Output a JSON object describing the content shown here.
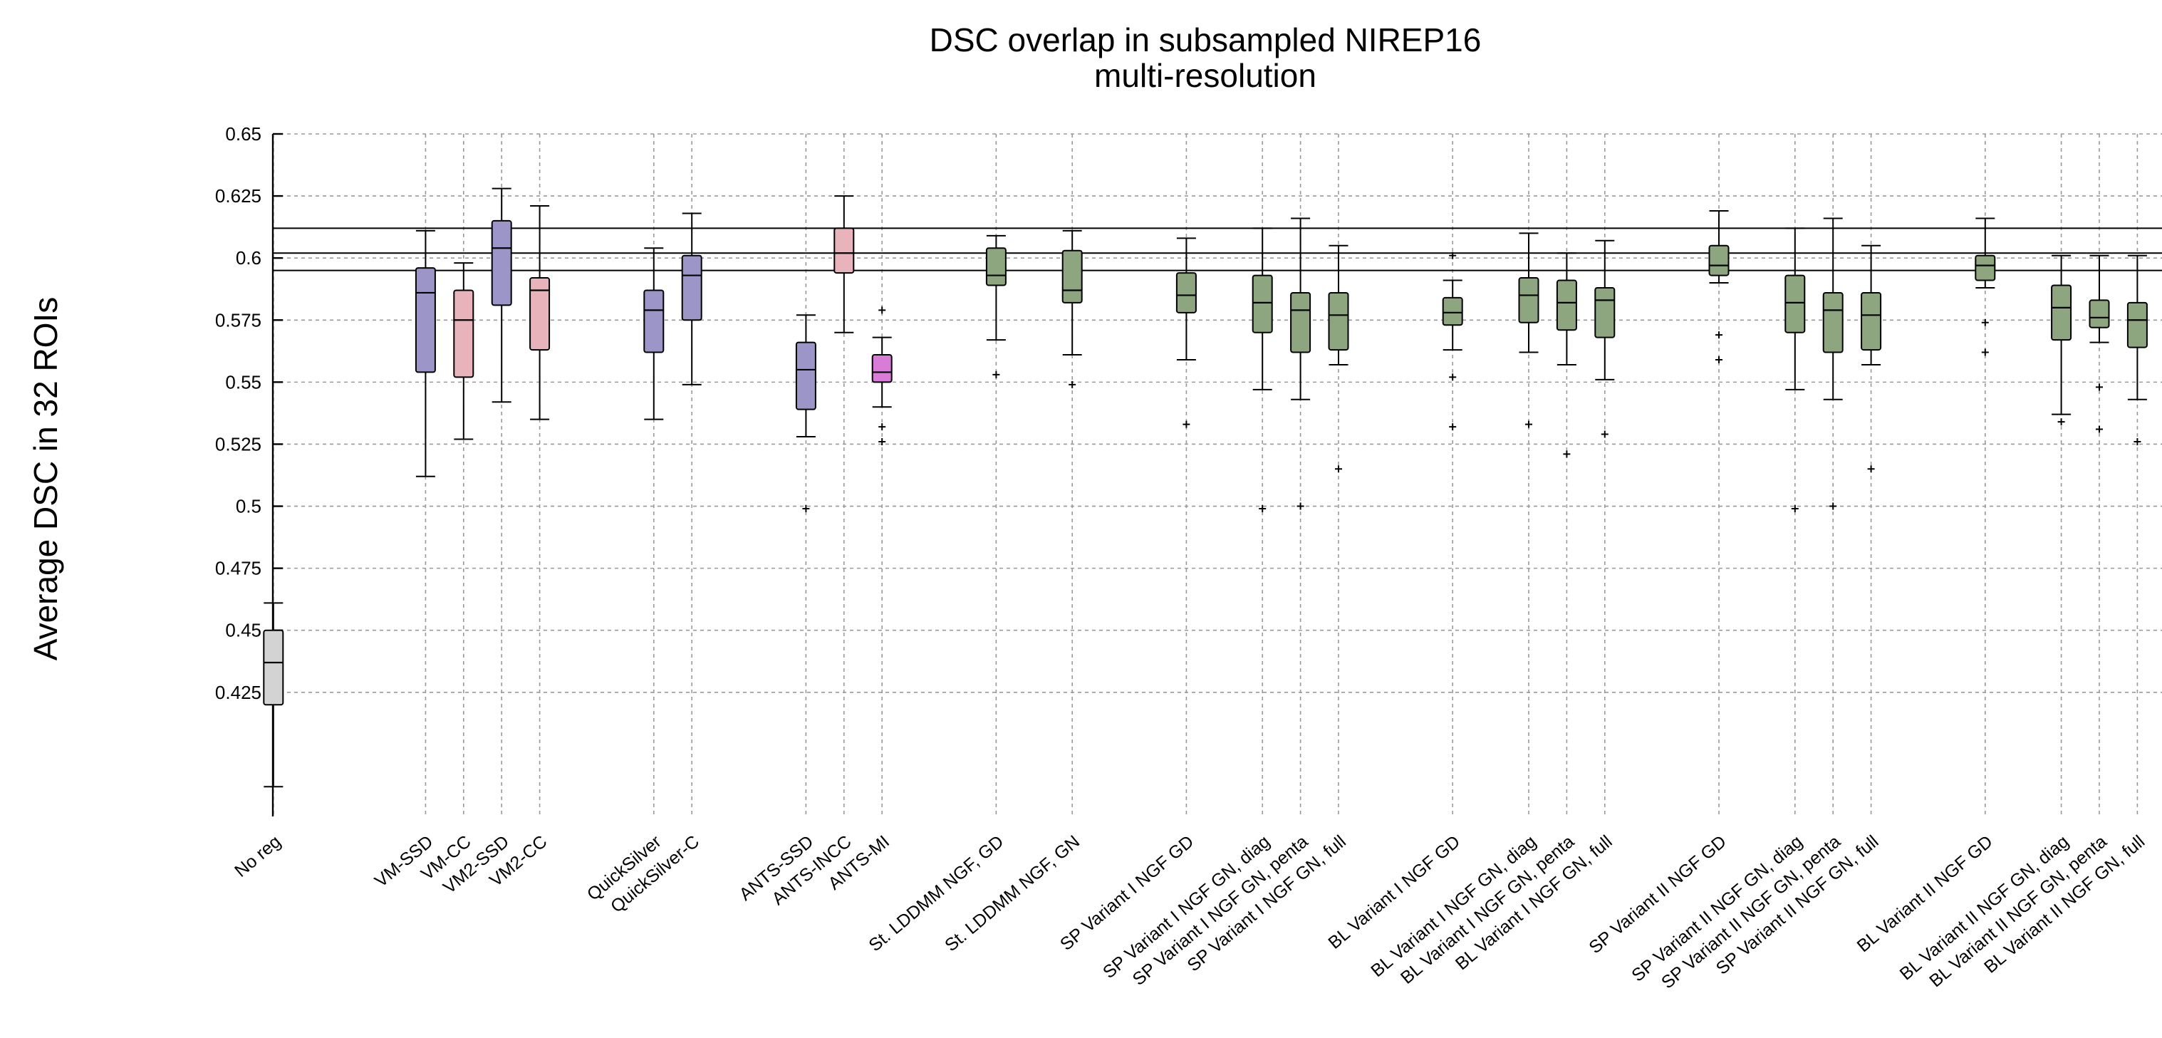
{
  "chart_data": {
    "type": "box",
    "title": "DSC overlap in subsampled NIREP16",
    "subtitle": "multi-resolution",
    "ylabel": "Average DSC in 32 ROIs",
    "xlabel": "",
    "ylim": [
      0.375,
      0.65
    ],
    "yticks": [
      0.425,
      0.45,
      0.475,
      0.5,
      0.525,
      0.55,
      0.575,
      0.6,
      0.625,
      0.65
    ],
    "ytick_labels": [
      "0.425",
      "0.45",
      "0.475",
      "0.5",
      "0.525",
      "0.55",
      "0.575",
      "0.6",
      "0.625",
      "0.65"
    ],
    "grid": true,
    "reference_lines": [
      0.612,
      0.602,
      0.595
    ],
    "colors": {
      "gray": "#d3d3d3",
      "purple": "#9c96c8",
      "pink": "#e8b3bb",
      "magenta": "#d87cd8",
      "green": "#8da67f"
    },
    "categories": [
      {
        "label": "No reg",
        "pos": 1,
        "color": "gray",
        "q1": 0.42,
        "median": 0.437,
        "q3": 0.45,
        "wlo": 0.387,
        "whi": 0.461,
        "outliers": []
      },
      {
        "label": "VM-SSD",
        "pos": 5,
        "color": "purple",
        "q1": 0.554,
        "median": 0.586,
        "q3": 0.596,
        "wlo": 0.512,
        "whi": 0.611,
        "outliers": []
      },
      {
        "label": "VM-CC",
        "pos": 6,
        "color": "pink",
        "q1": 0.552,
        "median": 0.575,
        "q3": 0.587,
        "wlo": 0.527,
        "whi": 0.598,
        "outliers": []
      },
      {
        "label": "VM2-SSD",
        "pos": 7,
        "color": "purple",
        "q1": 0.581,
        "median": 0.604,
        "q3": 0.615,
        "wlo": 0.542,
        "whi": 0.628,
        "outliers": []
      },
      {
        "label": "VM2-CC",
        "pos": 8,
        "color": "pink",
        "q1": 0.563,
        "median": 0.587,
        "q3": 0.592,
        "wlo": 0.535,
        "whi": 0.621,
        "outliers": []
      },
      {
        "label": "QuickSilver",
        "pos": 11,
        "color": "purple",
        "q1": 0.562,
        "median": 0.579,
        "q3": 0.587,
        "wlo": 0.535,
        "whi": 0.604,
        "outliers": []
      },
      {
        "label": "QuickSilver-C",
        "pos": 12,
        "color": "purple",
        "q1": 0.575,
        "median": 0.593,
        "q3": 0.601,
        "wlo": 0.549,
        "whi": 0.618,
        "outliers": []
      },
      {
        "label": "ANTS-SSD",
        "pos": 15,
        "color": "purple",
        "q1": 0.539,
        "median": 0.555,
        "q3": 0.566,
        "wlo": 0.528,
        "whi": 0.577,
        "outliers": [
          0.499
        ]
      },
      {
        "label": "ANTS-INCC",
        "pos": 16,
        "color": "pink",
        "q1": 0.594,
        "median": 0.602,
        "q3": 0.612,
        "wlo": 0.57,
        "whi": 0.625,
        "outliers": []
      },
      {
        "label": "ANTS-MI",
        "pos": 17,
        "color": "magenta",
        "q1": 0.55,
        "median": 0.554,
        "q3": 0.561,
        "wlo": 0.54,
        "whi": 0.568,
        "outliers": [
          0.579,
          0.532,
          0.526
        ]
      },
      {
        "label": "St. LDDMM NGF, GD",
        "pos": 20,
        "color": "green",
        "q1": 0.589,
        "median": 0.593,
        "q3": 0.604,
        "wlo": 0.567,
        "whi": 0.609,
        "outliers": [
          0.553
        ]
      },
      {
        "label": "St. LDDMM NGF, GN",
        "pos": 22,
        "color": "green",
        "q1": 0.582,
        "median": 0.587,
        "q3": 0.603,
        "wlo": 0.561,
        "whi": 0.611,
        "outliers": [
          0.549
        ]
      },
      {
        "label": "SP Variant I NGF GD",
        "pos": 25,
        "color": "green",
        "q1": 0.578,
        "median": 0.585,
        "q3": 0.594,
        "wlo": 0.559,
        "whi": 0.608,
        "outliers": [
          0.533
        ]
      },
      {
        "label": "SP Variant I NGF GN, diag",
        "pos": 27,
        "color": "green",
        "q1": 0.57,
        "median": 0.582,
        "q3": 0.593,
        "wlo": 0.547,
        "whi": 0.612,
        "outliers": [
          0.499
        ]
      },
      {
        "label": "SP Variant I NGF GN, penta",
        "pos": 28,
        "color": "green",
        "q1": 0.562,
        "median": 0.579,
        "q3": 0.586,
        "wlo": 0.543,
        "whi": 0.616,
        "outliers": [
          0.5
        ]
      },
      {
        "label": "SP Variant I NGF GN, full",
        "pos": 29,
        "color": "green",
        "q1": 0.563,
        "median": 0.577,
        "q3": 0.586,
        "wlo": 0.557,
        "whi": 0.605,
        "outliers": [
          0.515
        ]
      },
      {
        "label": "BL Variant I NGF GD",
        "pos": 32,
        "color": "green",
        "q1": 0.573,
        "median": 0.578,
        "q3": 0.584,
        "wlo": 0.563,
        "whi": 0.591,
        "outliers": [
          0.601,
          0.552,
          0.532
        ]
      },
      {
        "label": "BL Variant I NGF GN, diag",
        "pos": 34,
        "color": "green",
        "q1": 0.574,
        "median": 0.585,
        "q3": 0.592,
        "wlo": 0.562,
        "whi": 0.61,
        "outliers": [
          0.533
        ]
      },
      {
        "label": "BL Variant I NGF GN, penta",
        "pos": 35,
        "color": "green",
        "q1": 0.571,
        "median": 0.582,
        "q3": 0.591,
        "wlo": 0.557,
        "whi": 0.602,
        "outliers": [
          0.521
        ]
      },
      {
        "label": "BL Variant I NGF GN, full",
        "pos": 36,
        "color": "green",
        "q1": 0.568,
        "median": 0.583,
        "q3": 0.588,
        "wlo": 0.551,
        "whi": 0.607,
        "outliers": [
          0.529
        ]
      },
      {
        "label": "SP Variant II NGF GD",
        "pos": 39,
        "color": "green",
        "q1": 0.593,
        "median": 0.597,
        "q3": 0.605,
        "wlo": 0.59,
        "whi": 0.619,
        "outliers": [
          0.569,
          0.559
        ]
      },
      {
        "label": "SP Variant II NGF GN, diag",
        "pos": 41,
        "color": "green",
        "q1": 0.57,
        "median": 0.582,
        "q3": 0.593,
        "wlo": 0.547,
        "whi": 0.612,
        "outliers": [
          0.499
        ]
      },
      {
        "label": "SP Variant II NGF GN, penta",
        "pos": 42,
        "color": "green",
        "q1": 0.562,
        "median": 0.579,
        "q3": 0.586,
        "wlo": 0.543,
        "whi": 0.616,
        "outliers": [
          0.5
        ]
      },
      {
        "label": "SP Variant II NGF GN, full",
        "pos": 43,
        "color": "green",
        "q1": 0.563,
        "median": 0.577,
        "q3": 0.586,
        "wlo": 0.557,
        "whi": 0.605,
        "outliers": [
          0.515
        ]
      },
      {
        "label": "BL Variant II NGF GD",
        "pos": 46,
        "color": "green",
        "q1": 0.591,
        "median": 0.597,
        "q3": 0.601,
        "wlo": 0.588,
        "whi": 0.616,
        "outliers": [
          0.574,
          0.562
        ]
      },
      {
        "label": "BL Variant II NGF GN, diag",
        "pos": 48,
        "color": "green",
        "q1": 0.567,
        "median": 0.58,
        "q3": 0.589,
        "wlo": 0.537,
        "whi": 0.601,
        "outliers": [
          0.534
        ]
      },
      {
        "label": "BL Variant II NGF GN, penta",
        "pos": 49,
        "color": "green",
        "q1": 0.572,
        "median": 0.576,
        "q3": 0.583,
        "wlo": 0.566,
        "whi": 0.601,
        "outliers": [
          0.548,
          0.531
        ]
      },
      {
        "label": "BL Variant II NGF GN, full",
        "pos": 50,
        "color": "green",
        "q1": 0.564,
        "median": 0.575,
        "q3": 0.582,
        "wlo": 0.543,
        "whi": 0.601,
        "outliers": [
          0.526
        ]
      }
    ]
  }
}
